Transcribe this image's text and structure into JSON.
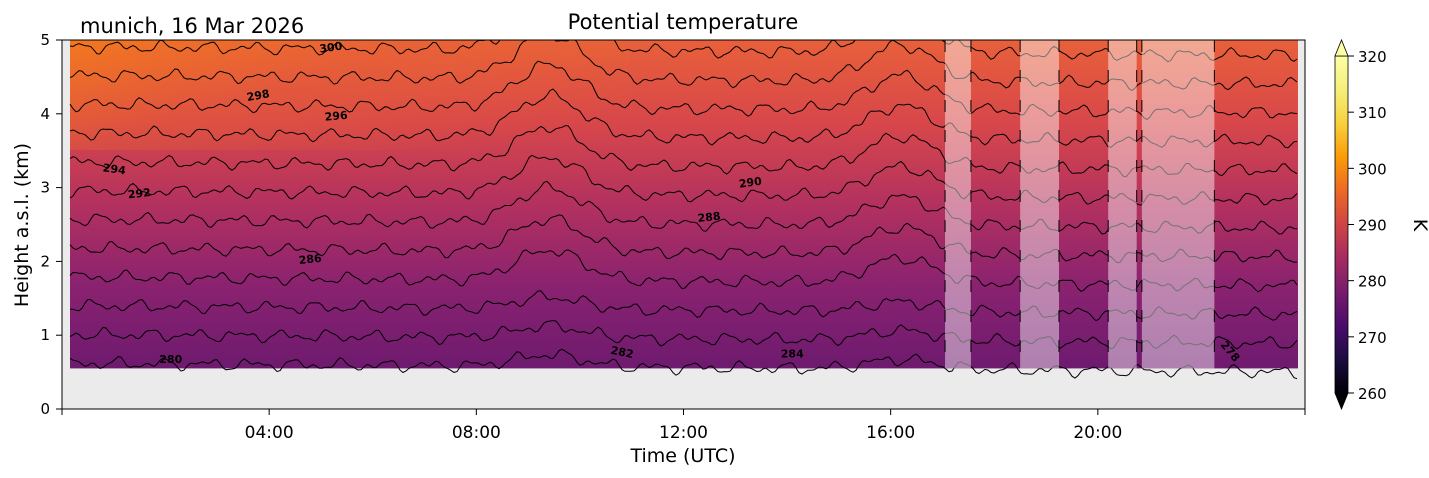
{
  "chart_data": {
    "type": "heatmap",
    "location_date": "munich, 16 Mar 2026",
    "title": "Potential temperature",
    "xlabel": "Time (UTC)",
    "ylabel": "Height a.s.l. (km)",
    "x_range_hours": [
      0,
      24
    ],
    "x_ticks": [
      {
        "hour": 4,
        "label": "04:00"
      },
      {
        "hour": 8,
        "label": "08:00"
      },
      {
        "hour": 12,
        "label": "12:00"
      },
      {
        "hour": 16,
        "label": "16:00"
      },
      {
        "hour": 20,
        "label": "20:00"
      }
    ],
    "ylim_km": [
      0,
      5
    ],
    "y_ticks": [
      0,
      1,
      2,
      3,
      4,
      5
    ],
    "data_bottom_km": 0.55,
    "colorbar": {
      "label": "K",
      "range": [
        260,
        320
      ],
      "ticks": [
        260,
        270,
        280,
        290,
        300,
        310,
        320
      ],
      "colormap": "inferno",
      "extend": "both"
    },
    "contour_levels_K": [
      278,
      280,
      282,
      284,
      286,
      288,
      290,
      292,
      294,
      296,
      298,
      300
    ],
    "contour_labels": [
      {
        "text": "300",
        "hour": 5.2,
        "km": 4.85,
        "angle": -8
      },
      {
        "text": "298",
        "hour": 3.8,
        "km": 4.2,
        "angle": -10
      },
      {
        "text": "296",
        "hour": 5.3,
        "km": 3.92,
        "angle": -5
      },
      {
        "text": "294",
        "hour": 1.0,
        "km": 3.2,
        "angle": 8
      },
      {
        "text": "292",
        "hour": 1.5,
        "km": 2.87,
        "angle": -6
      },
      {
        "text": "290",
        "hour": 13.3,
        "km": 3.02,
        "angle": -8
      },
      {
        "text": "288",
        "hour": 12.5,
        "km": 2.55,
        "angle": -6
      },
      {
        "text": "286",
        "hour": 4.8,
        "km": 1.98,
        "angle": -6
      },
      {
        "text": "284",
        "hour": 14.1,
        "km": 0.7,
        "angle": 0
      },
      {
        "text": "282",
        "hour": 10.8,
        "km": 0.72,
        "angle": 12
      },
      {
        "text": "280",
        "hour": 2.1,
        "km": 0.62,
        "angle": 0
      },
      {
        "text": "278",
        "hour": 22.5,
        "km": 0.75,
        "angle": 50
      }
    ],
    "masked_time_ranges_hours": [
      [
        17.05,
        17.55
      ],
      [
        18.5,
        19.25
      ],
      [
        20.2,
        20.75
      ],
      [
        20.85,
        22.25
      ]
    ]
  },
  "colors": {
    "missing_background": "#ebebeb",
    "contour_line": "#000000",
    "mask_overlay": "#ffffff"
  }
}
